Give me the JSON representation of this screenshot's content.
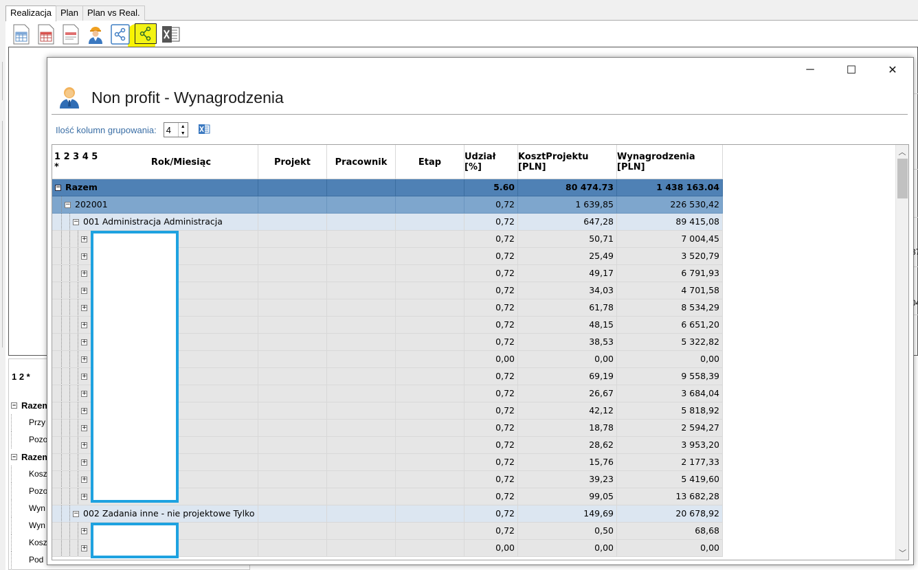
{
  "app": {
    "tabs": [
      "Realizacja",
      "Plan",
      "Plan vs Real."
    ],
    "toolbar": [
      "grid-report-icon",
      "red-report-icon",
      "pdf-report-icon",
      "worker-icon",
      "share-icon",
      "share-highlighted-icon",
      "excel-icon"
    ],
    "bottom_group_levels": "1 2 *",
    "bottom_tree": [
      {
        "label": "Razem",
        "bold": true
      },
      {
        "label": "Przy",
        "bold": false
      },
      {
        "label": "Pozo",
        "bold": false
      },
      {
        "label": "Razem",
        "bold": true
      },
      {
        "label": "Kosz",
        "bold": false
      },
      {
        "label": "Pozo",
        "bold": false
      },
      {
        "label": "Wyn",
        "bold": false
      },
      {
        "label": "Wyn",
        "bold": false
      },
      {
        "label": "Kosz",
        "bold": false
      },
      {
        "label": "Pod",
        "bold": false
      }
    ],
    "right_edge_texts": [
      "37",
      "04"
    ]
  },
  "dialog": {
    "title": "Non profit - Wynagrodzenia",
    "window_controls": {
      "minimize": "─",
      "maximize": "☐",
      "close": "✕"
    },
    "grouping_label": "Ilość kolumn grupowania:",
    "grouping_value": "4",
    "grid": {
      "levels": "1 2 3 4 5 *",
      "columns": [
        "Rok/Miesiąc",
        "Projekt",
        "Pracownik",
        "Etap",
        "Udział [%]",
        "KosztProjektu [PLN]",
        "Wynagrodzenia [PLN]"
      ],
      "total": {
        "label": "Razem",
        "udzial": "5.60",
        "koszt": "80 474.73",
        "wyn": "1 438 163.04"
      },
      "year": {
        "label": "202001",
        "udzial": "0,72",
        "koszt": "1 639,85",
        "wyn": "226 530,42"
      },
      "group1": {
        "label": "001  Administracja  Administracja",
        "udzial": "0,72",
        "koszt": "647,28",
        "wyn": "89 415,08"
      },
      "group1_rows": [
        {
          "udzial": "0,72",
          "koszt": "50,71",
          "wyn": "7 004,45"
        },
        {
          "udzial": "0,72",
          "koszt": "25,49",
          "wyn": "3 520,79"
        },
        {
          "udzial": "0,72",
          "koszt": "49,17",
          "wyn": "6 791,93"
        },
        {
          "udzial": "0,72",
          "koszt": "34,03",
          "wyn": "4 701,58"
        },
        {
          "udzial": "0,72",
          "koszt": "61,78",
          "wyn": "8 534,29"
        },
        {
          "udzial": "0,72",
          "koszt": "48,15",
          "wyn": "6 651,20"
        },
        {
          "udzial": "0,72",
          "koszt": "38,53",
          "wyn": "5 322,82"
        },
        {
          "udzial": "0,00",
          "koszt": "0,00",
          "wyn": "0,00"
        },
        {
          "udzial": "0,72",
          "koszt": "69,19",
          "wyn": "9 558,39"
        },
        {
          "udzial": "0,72",
          "koszt": "26,67",
          "wyn": "3 684,04"
        },
        {
          "udzial": "0,72",
          "koszt": "42,12",
          "wyn": "5 818,92"
        },
        {
          "udzial": "0,72",
          "koszt": "18,78",
          "wyn": "2 594,27"
        },
        {
          "udzial": "0,72",
          "koszt": "28,62",
          "wyn": "3 953,20"
        },
        {
          "udzial": "0,72",
          "koszt": "15,76",
          "wyn": "2 177,33"
        },
        {
          "udzial": "0,72",
          "koszt": "39,23",
          "wyn": "5 419,60"
        },
        {
          "udzial": "0,72",
          "koszt": "99,05",
          "wyn": "13 682,28"
        }
      ],
      "group2": {
        "label": "002  Zadania  inne - nie  projektowe  Tylko",
        "udzial": "0,72",
        "koszt": "149,69",
        "wyn": "20 678,92"
      },
      "group2_rows": [
        {
          "udzial": "0,72",
          "koszt": "0,50",
          "wyn": "68,68"
        },
        {
          "udzial": "0,00",
          "koszt": "0,00",
          "wyn": "0,00"
        }
      ]
    }
  },
  "colors": {
    "total_row": "#4f81b5",
    "year_row": "#7ea6cd",
    "group_row": "#dce6f1",
    "leaf_row": "#e6e6e6",
    "highlight": "#f9f300",
    "redaction_border": "#1ea2e0"
  }
}
